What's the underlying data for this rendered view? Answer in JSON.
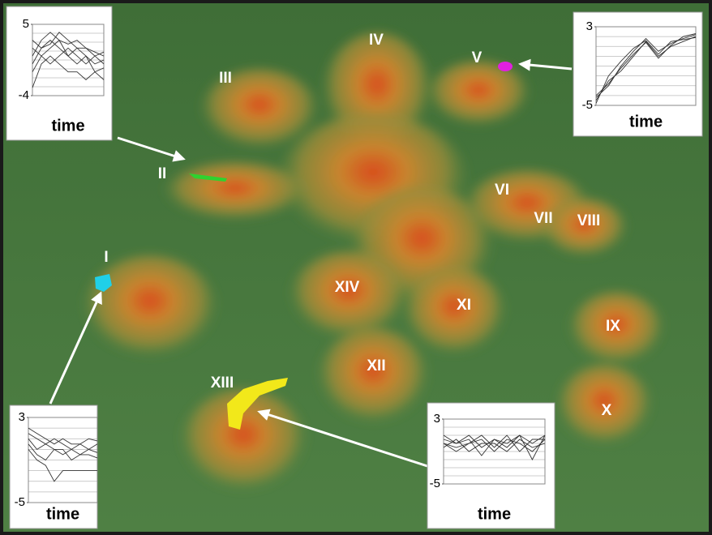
{
  "terrain": {
    "clusters": [
      "I",
      "II",
      "III",
      "IV",
      "V",
      "VI",
      "VII",
      "VIII",
      "IX",
      "X",
      "XI",
      "XII",
      "XIII",
      "XIV"
    ]
  },
  "insets": [
    {
      "ylim": [
        -4,
        5
      ],
      "yticks": [
        5,
        -4
      ],
      "xlabel": "time",
      "series": [
        [
          1,
          3,
          4,
          3,
          2.5,
          3,
          2,
          1.5,
          1
        ],
        [
          0,
          2,
          3,
          2,
          1,
          2,
          1,
          0,
          0.5
        ],
        [
          -1,
          1,
          2,
          3,
          1,
          0,
          1,
          -1,
          -0.5
        ],
        [
          2,
          1,
          0,
          1,
          2,
          1,
          0,
          1,
          0
        ],
        [
          -3,
          0,
          1,
          0,
          -1,
          -1,
          -2,
          -1,
          -2
        ],
        [
          3,
          2,
          2.5,
          4,
          3,
          2,
          2,
          1,
          1.5
        ]
      ]
    },
    {
      "ylim": [
        -5,
        3
      ],
      "yticks": [
        3,
        -5
      ],
      "xlabel": "time",
      "series": [
        [
          -4.5,
          -2.5,
          -1.5,
          0,
          1.5,
          0,
          1,
          1.5,
          2
        ],
        [
          -4.2,
          -3,
          -1,
          0.5,
          1.8,
          0.5,
          1.3,
          1.8,
          2.2
        ],
        [
          -4.8,
          -2,
          -0.5,
          0.8,
          1.6,
          0.2,
          1.5,
          1.7,
          1.9
        ],
        [
          -4,
          -2.8,
          -1.2,
          0.2,
          1.4,
          -0.2,
          1.1,
          2,
          2.3
        ]
      ]
    },
    {
      "ylim": [
        -5,
        3
      ],
      "yticks": [
        3,
        -5
      ],
      "xlabel": "time",
      "series": [
        [
          1.5,
          1,
          0.5,
          1,
          0.5,
          0,
          0.5,
          0,
          0.5
        ],
        [
          1,
          0,
          0.5,
          0,
          -0.5,
          0,
          -0.5,
          0,
          -0.3
        ],
        [
          0.5,
          -0.5,
          -1,
          0,
          0,
          -1,
          -0.5,
          -0.5,
          -0.8
        ],
        [
          2,
          1.5,
          1,
          0.5,
          1,
          0.5,
          0.5,
          1,
          0.8
        ],
        [
          0,
          -1,
          -1.5,
          -3,
          -2,
          -2,
          -2,
          -2,
          -2
        ]
      ]
    },
    {
      "ylim": [
        -5,
        3
      ],
      "yticks": [
        3,
        -5
      ],
      "xlabel": "time",
      "series": [
        [
          0.5,
          0,
          1,
          -0.5,
          0.5,
          0,
          1,
          0,
          1
        ],
        [
          0,
          -1,
          0,
          0.5,
          -1,
          0.5,
          0,
          -1,
          0.5
        ],
        [
          -0.5,
          0.5,
          -1,
          0,
          0,
          -1,
          0.5,
          -0.5,
          0
        ],
        [
          1,
          0,
          0.5,
          -1.5,
          0.5,
          -0.5,
          1,
          -2,
          1
        ],
        [
          0,
          -0.5,
          0,
          1,
          -0.5,
          1,
          -1,
          0.5,
          0.5
        ]
      ]
    }
  ]
}
